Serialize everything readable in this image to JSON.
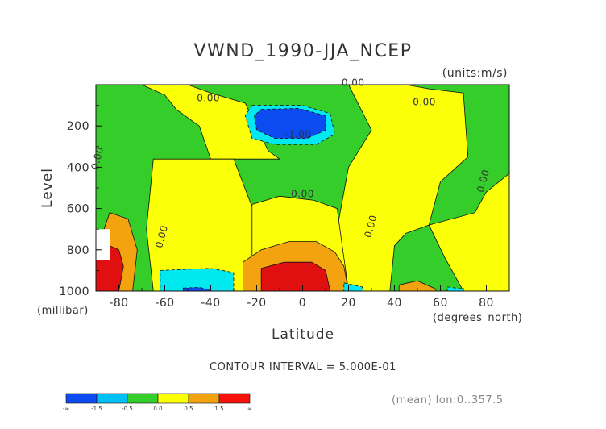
{
  "chart_data": {
    "type": "heatmap",
    "title": "VWND_1990-JJA_NCEP",
    "units_label": "(units:m/s)",
    "xlabel": "Latitude",
    "ylabel": "Level",
    "x_unit_label": "(degrees_north)",
    "y_unit_label": "(millibar)",
    "xlim": [
      -90,
      90
    ],
    "ylim": [
      1000,
      0
    ],
    "x_ticks": [
      -80,
      -60,
      -40,
      -20,
      0,
      20,
      40,
      60,
      80
    ],
    "x_tick_labels": [
      "-80",
      "-60",
      "-40",
      "-20",
      "0",
      "20",
      "40",
      "60",
      "80"
    ],
    "y_ticks": [
      200,
      400,
      600,
      800,
      1000
    ],
    "y_tick_labels": [
      "200",
      "400",
      "600",
      "800",
      "1000"
    ],
    "contour_interval_text": "CONTOUR INTERVAL = 5.000E-01",
    "footnote": "(mean) lon:0..357.5",
    "contour_labels": [
      {
        "text": "0.00",
        "x": -41,
        "y": 80
      },
      {
        "text": "0.00",
        "x": 22,
        "y": 5
      },
      {
        "text": "0.00",
        "x": 53,
        "y": 100
      },
      {
        "text": "-1.00",
        "x": -2,
        "y": 255
      },
      {
        "text": "0.00",
        "x": -88,
        "y": 360
      },
      {
        "text": "0.00",
        "x": 0,
        "y": 545
      },
      {
        "text": "0.00",
        "x": 31,
        "y": 690
      },
      {
        "text": "0.00",
        "x": 80,
        "y": 470
      },
      {
        "text": "0.00",
        "x": -60,
        "y": 740
      }
    ],
    "regions": {
      "positive_low": [
        {
          "pts": [
            [
              -70,
              0
            ],
            [
              -50,
              0
            ],
            [
              -40,
              40
            ],
            [
              -25,
              90
            ],
            [
              -15,
              320
            ],
            [
              -10,
              360
            ],
            [
              -40,
              360
            ],
            [
              -45,
              200
            ],
            [
              -55,
              120
            ],
            [
              -60,
              50
            ]
          ]
        },
        {
          "pts": [
            [
              -65,
              360
            ],
            [
              -30,
              360
            ],
            [
              -20,
              650
            ],
            [
              -22,
              1000
            ],
            [
              -65,
              1000
            ],
            [
              -68,
              700
            ]
          ]
        },
        {
          "pts": [
            [
              20,
              0
            ],
            [
              45,
              0
            ],
            [
              55,
              20
            ],
            [
              70,
              40
            ],
            [
              72,
              350
            ],
            [
              60,
              470
            ],
            [
              55,
              680
            ],
            [
              45,
              720
            ],
            [
              40,
              780
            ],
            [
              38,
              1000
            ],
            [
              10,
              1000
            ],
            [
              20,
              400
            ],
            [
              30,
              220
            ]
          ]
        },
        {
          "pts": [
            [
              55,
              680
            ],
            [
              75,
              620
            ],
            [
              80,
              520
            ],
            [
              90,
              430
            ],
            [
              90,
              1000
            ],
            [
              70,
              1000
            ],
            [
              62,
              840
            ]
          ]
        },
        {
          "pts": [
            [
              -22,
              580
            ],
            [
              -10,
              540
            ],
            [
              5,
              560
            ],
            [
              15,
              600
            ],
            [
              20,
              1000
            ],
            [
              -22,
              1000
            ]
          ]
        }
      ],
      "positive_mid": [
        {
          "pts": [
            [
              -84,
              620
            ],
            [
              -76,
              650
            ],
            [
              -72,
              800
            ],
            [
              -74,
              1000
            ],
            [
              -88,
              1000
            ],
            [
              -88,
              750
            ]
          ]
        },
        {
          "pts": [
            [
              -26,
              860
            ],
            [
              -18,
              800
            ],
            [
              -6,
              760
            ],
            [
              6,
              760
            ],
            [
              14,
              810
            ],
            [
              18,
              880
            ],
            [
              20,
              1000
            ],
            [
              -26,
              1000
            ]
          ]
        },
        {
          "pts": [
            [
              42,
              970
            ],
            [
              50,
              950
            ],
            [
              58,
              990
            ],
            [
              58,
              1000
            ],
            [
              42,
              1000
            ]
          ]
        }
      ],
      "positive_high": [
        {
          "pts": [
            [
              -88,
              760
            ],
            [
              -80,
              800
            ],
            [
              -78,
              880
            ],
            [
              -80,
              1000
            ],
            [
              -90,
              1000
            ],
            [
              -90,
              780
            ]
          ]
        },
        {
          "pts": [
            [
              -18,
              890
            ],
            [
              -8,
              860
            ],
            [
              4,
              860
            ],
            [
              10,
              900
            ],
            [
              12,
              1000
            ],
            [
              -18,
              1000
            ]
          ]
        }
      ],
      "negative_mid": [
        {
          "pts": [
            [
              -22,
              100
            ],
            [
              0,
              100
            ],
            [
              12,
              140
            ],
            [
              14,
              240
            ],
            [
              6,
              290
            ],
            [
              -12,
              290
            ],
            [
              -22,
              260
            ],
            [
              -25,
              150
            ]
          ]
        },
        {
          "pts": [
            [
              -62,
              900
            ],
            [
              -40,
              890
            ],
            [
              -30,
              910
            ],
            [
              -30,
              1000
            ],
            [
              -62,
              1000
            ]
          ]
        },
        {
          "pts": [
            [
              18,
              960
            ],
            [
              26,
              980
            ],
            [
              26,
              1000
            ],
            [
              18,
              1000
            ]
          ]
        },
        {
          "pts": [
            [
              63,
              980
            ],
            [
              70,
              990
            ],
            [
              70,
              1000
            ],
            [
              63,
              1000
            ]
          ]
        }
      ],
      "negative_high": [
        {
          "pts": [
            [
              -18,
              120
            ],
            [
              -2,
              115
            ],
            [
              10,
              150
            ],
            [
              10,
              220
            ],
            [
              2,
              260
            ],
            [
              -12,
              260
            ],
            [
              -20,
              220
            ],
            [
              -21,
              150
            ]
          ]
        },
        {
          "pts": [
            [
              -52,
              985
            ],
            [
              -45,
              982
            ],
            [
              -40,
              995
            ],
            [
              -40,
              1000
            ],
            [
              -52,
              1000
            ]
          ]
        }
      ],
      "white": [
        {
          "pts": [
            [
              -90,
              700
            ],
            [
              -84,
              700
            ],
            [
              -84,
              850
            ],
            [
              -90,
              850
            ]
          ]
        }
      ]
    },
    "colorbar": {
      "colors": [
        "#0c4bf0",
        "#00c0f5",
        "#34cd2a",
        "#fbff08",
        "#f3a30f",
        "#f6130b"
      ],
      "tick_labels": [
        "-∞",
        "-1.5",
        "-0.5",
        "0.0",
        "0.5",
        "1.5",
        "∞"
      ]
    },
    "colors": {
      "positive_low": "#fbff08",
      "positive_mid": "#f3a30f",
      "positive_high": "#e01010",
      "negative_low": "#34cd2a",
      "negative_mid": "#00e8f0",
      "negative_high": "#0c4bf0"
    }
  }
}
